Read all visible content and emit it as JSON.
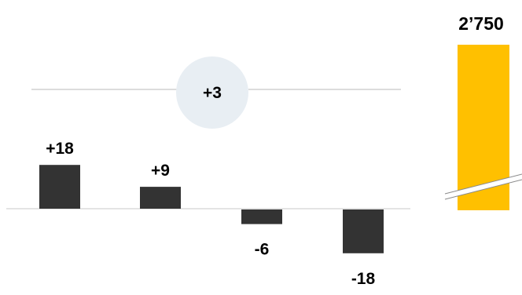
{
  "chart_data": {
    "type": "bar",
    "title": "",
    "xlabel": "",
    "ylabel": "",
    "categories": [
      "",
      "",
      "",
      ""
    ],
    "values": [
      18,
      9,
      -6,
      -18
    ],
    "value_labels": [
      "+18",
      "+9",
      "-6",
      "-18"
    ],
    "ylim": [
      -20,
      20
    ],
    "total": {
      "value": 2750,
      "label": "2’750",
      "axis_break": true
    },
    "net_change": {
      "value": 3,
      "label": "+3"
    },
    "grid": false,
    "legend": "none"
  },
  "colors": {
    "bar": "#333333",
    "total_bar": "#FFC000",
    "text": "#000000",
    "line": "#C8C8C8",
    "bubble": "#E8EEF3"
  }
}
